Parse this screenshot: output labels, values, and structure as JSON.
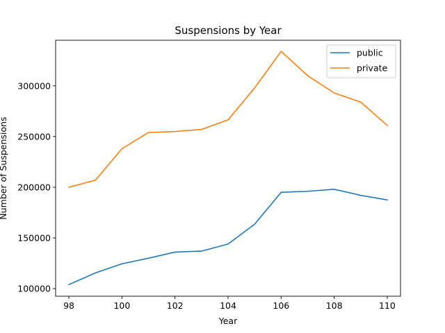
{
  "chart_data": {
    "type": "line",
    "title": "Suspensions by Year",
    "xlabel": "Year",
    "ylabel": "Number of Suspensions",
    "x": [
      98,
      99,
      100,
      101,
      102,
      103,
      104,
      105,
      106,
      107,
      108,
      109,
      110
    ],
    "xlim": [
      97.5,
      110.5
    ],
    "ylim": [
      92500,
      345000
    ],
    "xticks": [
      98,
      100,
      102,
      104,
      106,
      108,
      110
    ],
    "yticks": [
      100000,
      150000,
      200000,
      250000,
      300000
    ],
    "ytick_labels": [
      "100000",
      "150000",
      "200000",
      "250000",
      "300000"
    ],
    "grid": false,
    "legend_position": "top-right",
    "series": [
      {
        "name": "public",
        "color": "#1f77b4",
        "values": [
          104000,
          115500,
          124500,
          130000,
          136000,
          137000,
          144000,
          163500,
          195000,
          196000,
          198000,
          192000,
          187500
        ]
      },
      {
        "name": "private",
        "color": "#ff7f0e",
        "values": [
          200000,
          207000,
          238000,
          254000,
          255000,
          257000,
          266500,
          298000,
          334000,
          310000,
          293000,
          284000,
          261000
        ]
      }
    ]
  }
}
